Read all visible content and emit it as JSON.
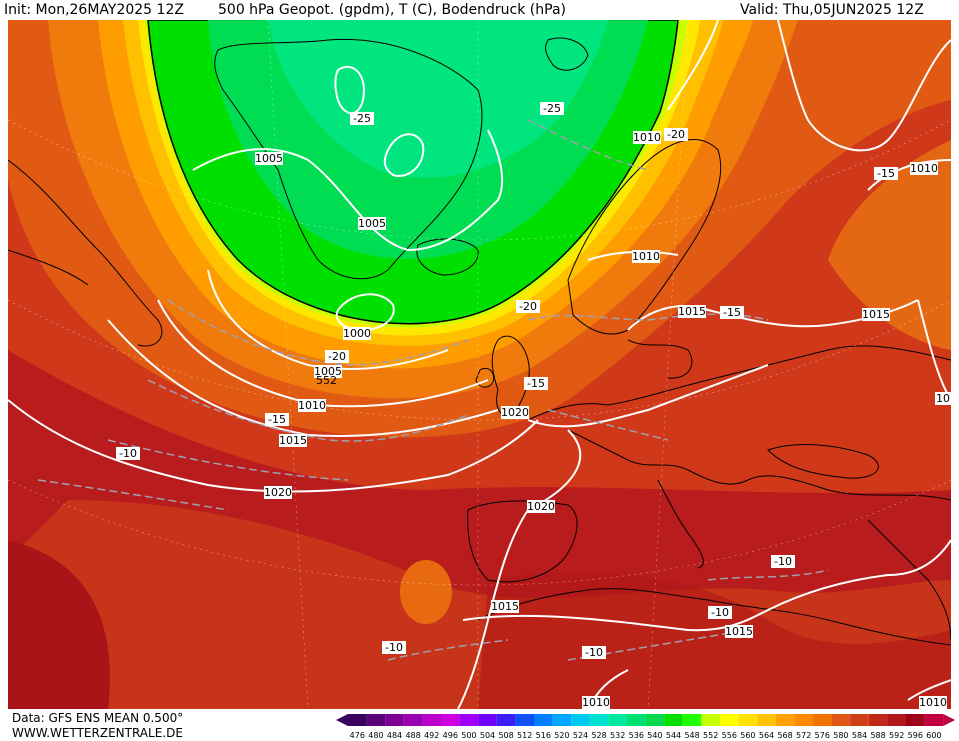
{
  "header": {
    "init": "Init: Mon,26MAY2025 12Z",
    "title": "500 hPa Geopot. (gpdm), T (C), Bodendruck (hPa)",
    "valid": "Valid: Thu,05JUN2025 12Z"
  },
  "footer": {
    "data_source": "Data: GFS ENS MEAN 0.500°",
    "website": "WWW.WETTERZENTRALE.DE"
  },
  "legend": {
    "values": [
      "476",
      "480",
      "484",
      "488",
      "492",
      "496",
      "500",
      "504",
      "508",
      "512",
      "516",
      "520",
      "524",
      "528",
      "532",
      "536",
      "540",
      "544",
      "548",
      "552",
      "556",
      "560",
      "564",
      "568",
      "572",
      "576",
      "580",
      "584",
      "588",
      "592",
      "596",
      "600"
    ],
    "colors": [
      "#3a0060",
      "#5a007a",
      "#7a0096",
      "#9a00b0",
      "#b800c8",
      "#d000e0",
      "#a000ff",
      "#7000ff",
      "#3a20ff",
      "#1050ff",
      "#0080ff",
      "#00a8ff",
      "#00c8f0",
      "#00e0d0",
      "#00e8a0",
      "#00e070",
      "#00d850",
      "#00e000",
      "#20ff00",
      "#c8ff00",
      "#ffff00",
      "#ffe000",
      "#ffc000",
      "#ffa000",
      "#ff8800",
      "#f07000",
      "#e05818",
      "#d04018",
      "#c02818",
      "#b01818",
      "#a00018",
      "#c00040"
    ]
  },
  "isobars": [
    {
      "label": "1005",
      "pos": "greenland-west"
    },
    {
      "label": "1005",
      "pos": "greenland-center"
    },
    {
      "label": "1000",
      "pos": "north-atlantic"
    },
    {
      "label": "1005",
      "pos": "south-greenland"
    },
    {
      "label": "1010",
      "pos": "atlantic-west"
    },
    {
      "label": "1015",
      "pos": "atlantic-mid"
    },
    {
      "label": "1020",
      "pos": "atlantic-south"
    },
    {
      "label": "1020",
      "pos": "uk"
    },
    {
      "label": "1020",
      "pos": "iberia"
    },
    {
      "label": "1015",
      "pos": "north-africa"
    },
    {
      "label": "1015",
      "pos": "mediterranean"
    },
    {
      "label": "1010",
      "pos": "scandinavia-north"
    },
    {
      "label": "1010",
      "pos": "scandinavia"
    },
    {
      "label": "1015",
      "pos": "baltic"
    },
    {
      "label": "1015",
      "pos": "russia"
    },
    {
      "label": "1010",
      "pos": "ne-corner"
    },
    {
      "label": "10",
      "pos": "east-edge"
    },
    {
      "label": "1010",
      "pos": "sahara"
    },
    {
      "label": "1010",
      "pos": "se-corner"
    }
  ],
  "temperatures": [
    {
      "label": "-25",
      "pos": "greenland"
    },
    {
      "label": "-25",
      "pos": "svalbard"
    },
    {
      "label": "-20",
      "pos": "norway-north"
    },
    {
      "label": "-15",
      "pos": "russia-north"
    },
    {
      "label": "-20",
      "pos": "north-sea"
    },
    {
      "label": "-15",
      "pos": "baltic"
    },
    {
      "label": "-15",
      "pos": "north-sea-south"
    },
    {
      "label": "-20",
      "pos": "atlantic-low"
    },
    {
      "label": "-15",
      "pos": "atlantic-west"
    },
    {
      "label": "-10",
      "pos": "atlantic-far-west"
    },
    {
      "label": "-10",
      "pos": "east-mediterranean"
    },
    {
      "label": "-10",
      "pos": "central-mediterranean"
    },
    {
      "label": "-10",
      "pos": "atlantic-south"
    },
    {
      "label": "-10",
      "pos": "north-africa"
    }
  ],
  "low_center_label": "552"
}
